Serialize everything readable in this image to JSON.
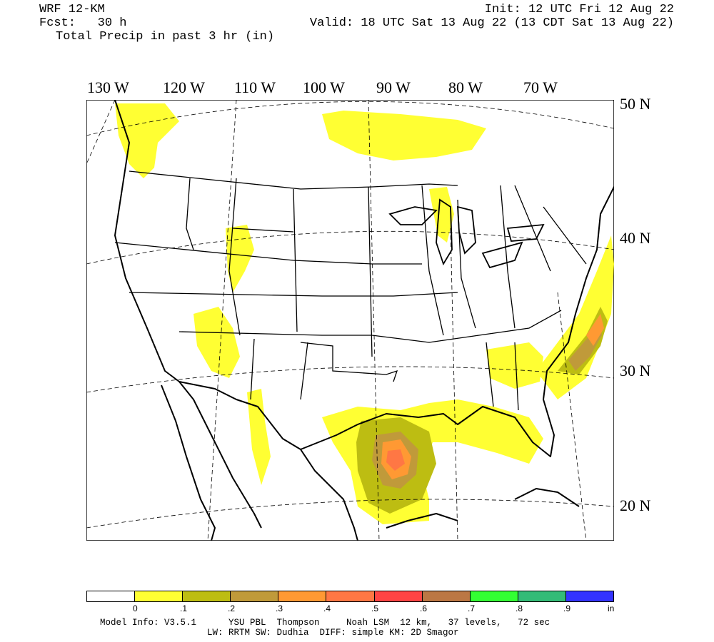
{
  "header": {
    "model": "WRF 12-KM",
    "fcst": "Fcst:   30 h",
    "field": "Total Precip in past 3 hr (in)",
    "init": "Init: 12 UTC Fri 12 Aug 22",
    "valid": "Valid: 18 UTC Sat 13 Aug 22 (13 CDT Sat 13 Aug 22)"
  },
  "lon_labels": [
    "130 W",
    "120 W",
    "110 W",
    "100 W",
    "90 W",
    "80 W",
    "70 W"
  ],
  "lat_labels": [
    "50 N",
    "40 N",
    "30 N",
    "20 N"
  ],
  "legend": {
    "colors": [
      "#ffffff",
      "#ffff33",
      "#bdbd12",
      "#c09a3a",
      "#ff9933",
      "#ff7744",
      "#ff4444",
      "#bb7744",
      "#33ff33",
      "#33bb77",
      "#3333ff"
    ],
    "ticks": [
      "0",
      ".1",
      ".2",
      ".3",
      ".4",
      ".5",
      ".6",
      ".7",
      ".8",
      ".9"
    ],
    "unit": "in"
  },
  "footer": {
    "line1": "Model Info: V3.5.1      YSU PBL  Thompson     Noah LSM  12 km,   37 levels,   72 sec",
    "line2": "LW: RRTM SW: Dudhia  DIFF: simple KM: 2D Smagor"
  }
}
